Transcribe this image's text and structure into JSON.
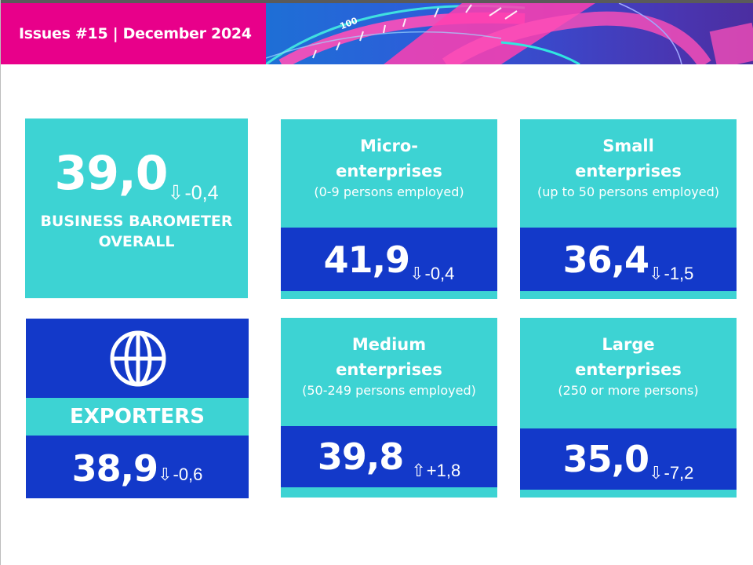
{
  "header": {
    "issue_label": "Issues #15 | December 2024",
    "banner_dial_text": "100",
    "colors": {
      "brand_pink": "#e8008a",
      "teal": "#3dd3d3",
      "blue": "#1339c9"
    }
  },
  "overall": {
    "value": "39,0",
    "arrow": "⇩",
    "change": "-0,4",
    "label_line1": "BUSINESS BAROMETER",
    "label_line2": "OVERALL"
  },
  "segments": [
    {
      "title_line1": "Micro-",
      "title_line2": "enterprises",
      "subtitle": "(0-9 persons employed)",
      "value": "41,9",
      "arrow": "⇩",
      "change": "-0,4"
    },
    {
      "title_line1": "Small",
      "title_line2": "enterprises",
      "subtitle": "(up to 50 persons employed)",
      "value": "36,4",
      "arrow": "⇩",
      "change": "-1,5"
    },
    {
      "title_line1": "Medium",
      "title_line2": "enterprises",
      "subtitle": "(50-249 persons employed)",
      "value": "39,8",
      "arrow": "⇧",
      "change": "+1,8"
    },
    {
      "title_line1": "Large",
      "title_line2": "enterprises",
      "subtitle": "(250 or more persons)",
      "value": "35,0",
      "arrow": "⇩",
      "change": "-7,2"
    }
  ],
  "exporters": {
    "icon": "globe-icon",
    "label": "EXPORTERS",
    "value": "38,9",
    "arrow": "⇩",
    "change": "-0,6"
  }
}
